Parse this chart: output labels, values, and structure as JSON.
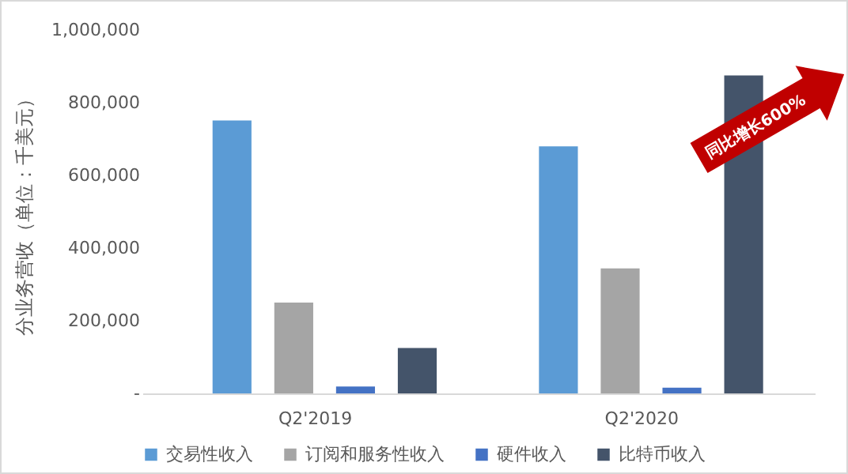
{
  "chart_data": {
    "type": "bar",
    "ylabel": "分业务营收（单位：千美元）",
    "categories": [
      "Q2'2019",
      "Q2'2020"
    ],
    "series": [
      {
        "name": "交易性收入",
        "color": "#5b9bd5",
        "values": [
          751000,
          680000
        ]
      },
      {
        "name": "订阅和服务性收入",
        "color": "#a5a5a5",
        "values": [
          250000,
          344000
        ]
      },
      {
        "name": "硬件收入",
        "color": "#4472c4",
        "values": [
          19000,
          16000
        ]
      },
      {
        "name": "比特币收入",
        "color": "#44546a",
        "values": [
          125000,
          875000
        ]
      }
    ],
    "ylim": [
      0,
      1000000
    ],
    "yticks": [
      {
        "value": 0,
        "label": "-"
      },
      {
        "value": 200000,
        "label": "200,000"
      },
      {
        "value": 400000,
        "label": "400,000"
      },
      {
        "value": 600000,
        "label": "600,000"
      },
      {
        "value": 800000,
        "label": "800,000"
      },
      {
        "value": 1000000,
        "label": "1,000,000"
      }
    ],
    "grid": false,
    "legend": "bottom",
    "annotations": [
      "同比增长600%"
    ]
  }
}
